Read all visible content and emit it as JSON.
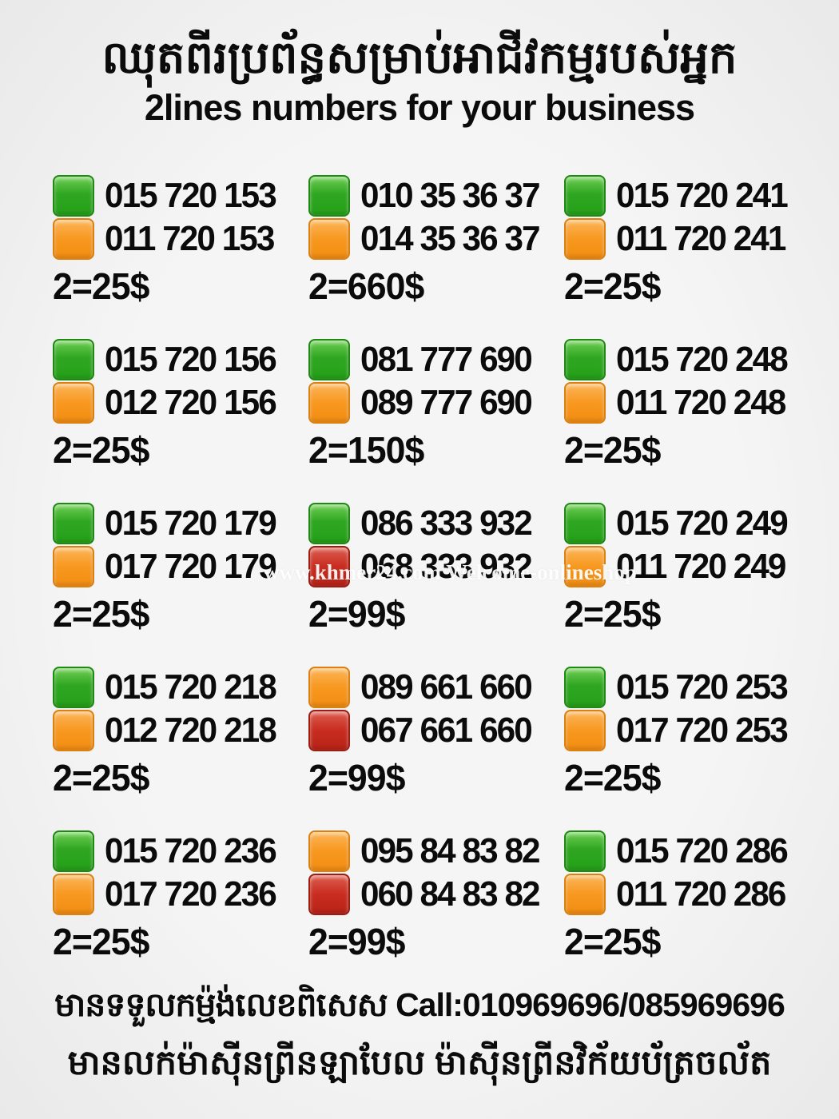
{
  "header": {
    "title_khmer": "ឈុតពីរប្រព័ន្ធសម្រាប់អាជីវកម្មរបស់អ្នក",
    "subtitle": "2lines numbers for your business"
  },
  "colors": {
    "green": "#2fa622",
    "orange": "#f8981f",
    "red": "#c92c20",
    "background": "#f2f2f2",
    "text": "#0b0b0b",
    "watermark": "#ffffff"
  },
  "watermark": {
    "text": "www.khmer24.com Welcome-onlineshop"
  },
  "grid": {
    "cells": [
      {
        "lines": [
          {
            "color": "green",
            "number": "015 720 153"
          },
          {
            "color": "orange",
            "number": "011 720 153"
          }
        ],
        "price": "2=25$"
      },
      {
        "lines": [
          {
            "color": "green",
            "number": "010 35 36 37"
          },
          {
            "color": "orange",
            "number": "014 35 36 37"
          }
        ],
        "price": "2=660$"
      },
      {
        "lines": [
          {
            "color": "green",
            "number": "015 720 241"
          },
          {
            "color": "orange",
            "number": "011 720 241"
          }
        ],
        "price": "2=25$"
      },
      {
        "lines": [
          {
            "color": "green",
            "number": "015 720 156"
          },
          {
            "color": "orange",
            "number": "012 720 156"
          }
        ],
        "price": "2=25$"
      },
      {
        "lines": [
          {
            "color": "green",
            "number": "081 777 690"
          },
          {
            "color": "orange",
            "number": "089 777 690"
          }
        ],
        "price": "2=150$"
      },
      {
        "lines": [
          {
            "color": "green",
            "number": "015 720 248"
          },
          {
            "color": "orange",
            "number": "011 720 248"
          }
        ],
        "price": "2=25$"
      },
      {
        "lines": [
          {
            "color": "green",
            "number": "015 720 179"
          },
          {
            "color": "orange",
            "number": "017 720 179"
          }
        ],
        "price": "2=25$"
      },
      {
        "lines": [
          {
            "color": "green",
            "number": "086 333 932"
          },
          {
            "color": "red",
            "number": "068 333 932"
          }
        ],
        "price": "2=99$"
      },
      {
        "lines": [
          {
            "color": "green",
            "number": "015 720 249"
          },
          {
            "color": "orange",
            "number": "011 720 249"
          }
        ],
        "price": "2=25$"
      },
      {
        "lines": [
          {
            "color": "green",
            "number": "015 720 218"
          },
          {
            "color": "orange",
            "number": "012 720 218"
          }
        ],
        "price": "2=25$"
      },
      {
        "lines": [
          {
            "color": "orange",
            "number": "089 661 660"
          },
          {
            "color": "red",
            "number": "067 661 660"
          }
        ],
        "price": "2=99$"
      },
      {
        "lines": [
          {
            "color": "green",
            "number": "015 720 253"
          },
          {
            "color": "orange",
            "number": "017 720 253"
          }
        ],
        "price": "2=25$"
      },
      {
        "lines": [
          {
            "color": "green",
            "number": "015 720 236"
          },
          {
            "color": "orange",
            "number": "017 720 236"
          }
        ],
        "price": "2=25$"
      },
      {
        "lines": [
          {
            "color": "orange",
            "number": "095 84 83 82"
          },
          {
            "color": "red",
            "number": "060 84 83 82"
          }
        ],
        "price": "2=99$"
      },
      {
        "lines": [
          {
            "color": "green",
            "number": "015 720 286"
          },
          {
            "color": "orange",
            "number": "011 720 286"
          }
        ],
        "price": "2=25$"
      }
    ]
  },
  "footer": {
    "line1_khmer": "មានទទួលកម្ម៉ង់លេខពិសេស",
    "line1_call": "Call:010969696/085969696",
    "line2_khmer": "មានលក់ម៉ាស៊ីនព្រីនឡាបែល ម៉ាស៊ីនព្រីនវិក័យប័ត្រចល័ត"
  }
}
